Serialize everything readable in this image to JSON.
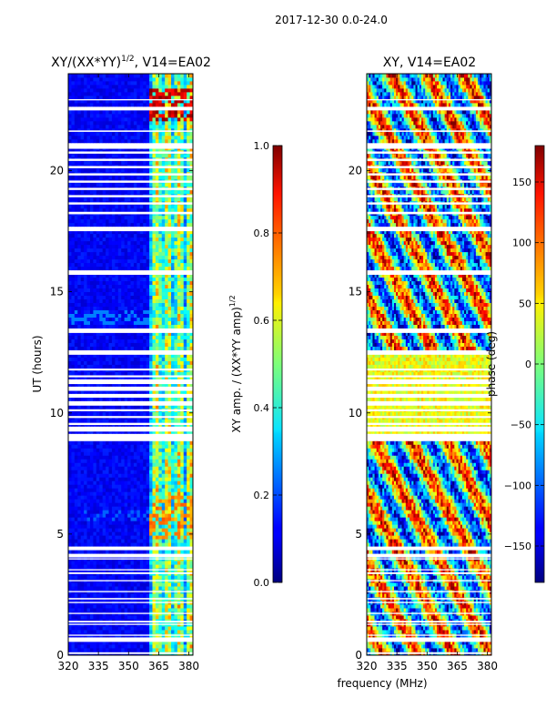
{
  "figure": {
    "suptitle": "2017-12-30 0.0-24.0",
    "xlabel": "frequency (MHz)"
  },
  "chart_data": [
    {
      "type": "heatmap",
      "title_main": "XY/(XX*YY)",
      "title_exp": "1/2",
      "title_tail": ", V14=EA02",
      "xlabel": "",
      "ylabel": "UT (hours)",
      "xlim": [
        320,
        382
      ],
      "ylim": [
        0,
        24
      ],
      "x_ticks": [
        320,
        335,
        350,
        365,
        380
      ],
      "y_ticks": [
        0,
        5,
        10,
        15,
        20
      ],
      "value_range": [
        0.0,
        1.0
      ],
      "colormap": "jet",
      "colorbar": {
        "label_main": "XY amp. / (XX*YY amp)",
        "label_exp": "1/2",
        "range": [
          0.0,
          1.0
        ],
        "ticks": [
          "0.0",
          "0.2",
          "0.4",
          "0.6",
          "0.8",
          "1.0"
        ]
      }
    },
    {
      "type": "heatmap",
      "title": "XY, V14=EA02",
      "ylabel": "",
      "xlim": [
        320,
        382
      ],
      "ylim": [
        0,
        24
      ],
      "x_ticks": [
        320,
        335,
        350,
        365,
        380
      ],
      "y_ticks": [
        0,
        5,
        10,
        15,
        20
      ],
      "value_range": [
        -180,
        180
      ],
      "colormap": "jet",
      "colorbar": {
        "label": "phase (deg)",
        "range": [
          -180,
          180
        ],
        "ticks": [
          "-150",
          "-100",
          "-50",
          "0",
          "50",
          "100",
          "150"
        ]
      }
    }
  ]
}
